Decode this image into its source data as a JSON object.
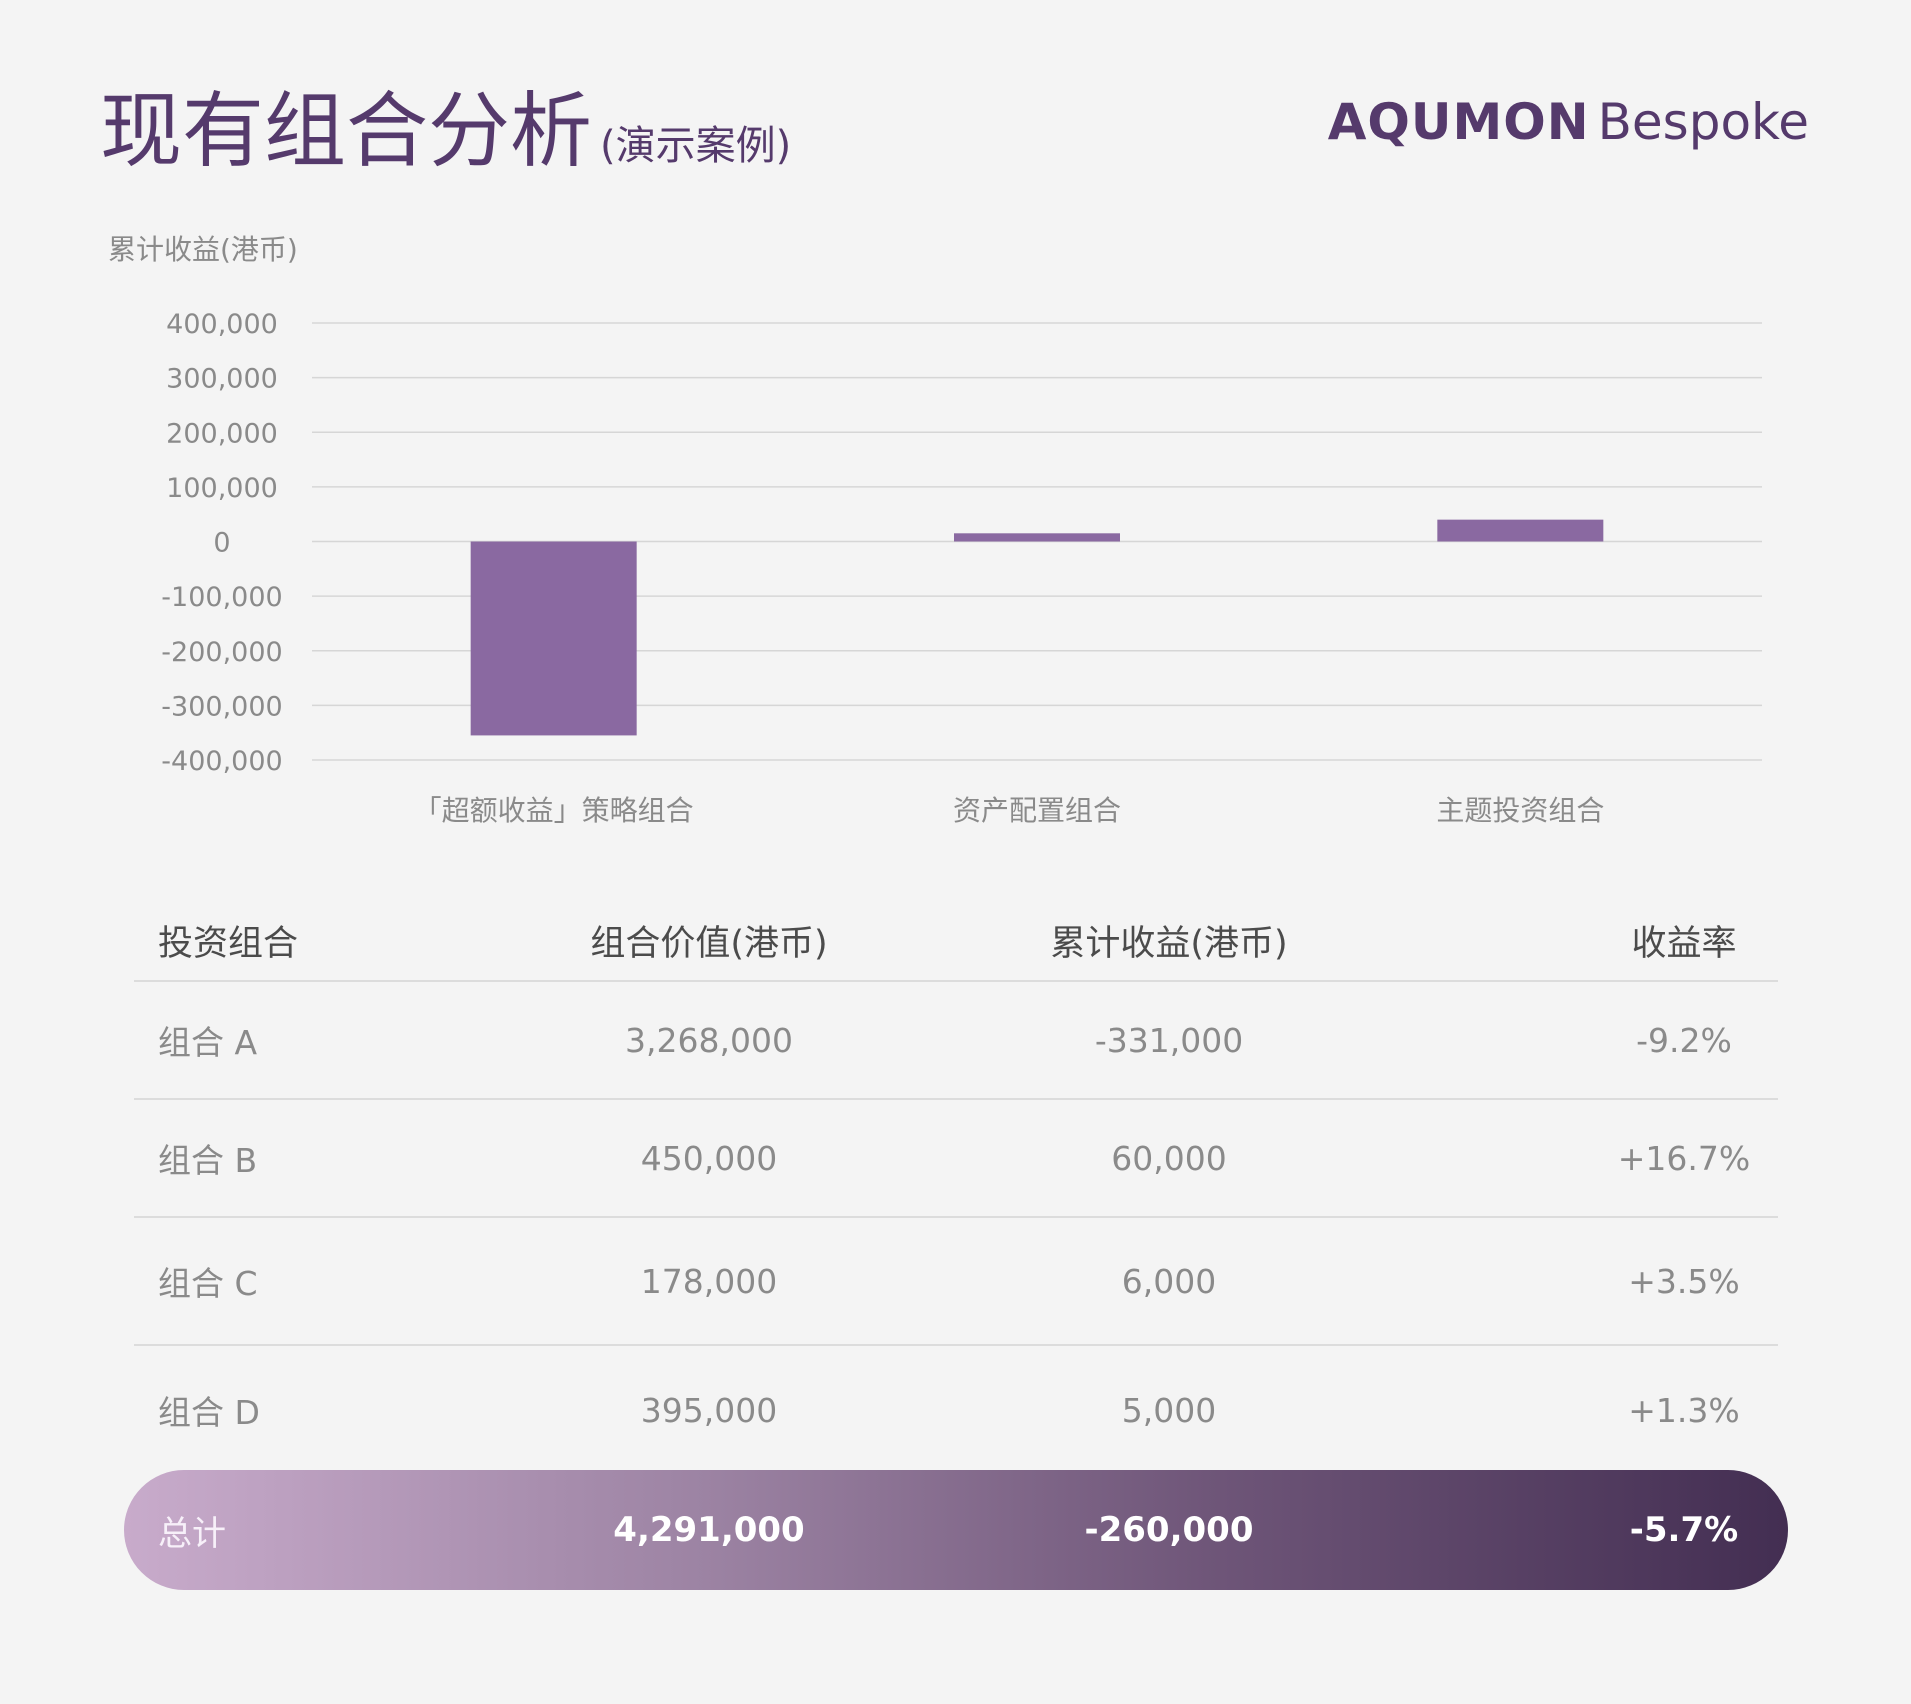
{
  "header": {
    "title": "现有组合分析",
    "subtitle": "(演示案例)",
    "brand_strong": "AQUMON",
    "brand_light": "Bespoke"
  },
  "colors": {
    "accent": "#553a6c",
    "bar": "#8a69a1",
    "grid": "#d6d6d6",
    "text_muted": "#8a8a8a"
  },
  "chart_data": {
    "type": "bar",
    "ylabel": "累计收益(港币)",
    "categories": [
      "「超额收益」策略组合",
      "资产配置组合",
      "主题投资组合"
    ],
    "values": [
      -355000,
      15000,
      40000
    ],
    "ylim": [
      -400000,
      400000
    ],
    "yticks": [
      400000,
      300000,
      200000,
      100000,
      0,
      -100000,
      -200000,
      -300000,
      -400000
    ],
    "ytick_labels": [
      "400,000",
      "300,000",
      "200,000",
      "100,000",
      "0",
      "-100,000",
      "-200,000",
      "-300,000",
      "-400,000"
    ],
    "grid": true
  },
  "table": {
    "headers": [
      "投资组合",
      "组合价值(港币)",
      "累计收益(港币)",
      "收益率"
    ],
    "rows": [
      [
        "组合 A",
        "3,268,000",
        "-331,000",
        "-9.2%"
      ],
      [
        "组合 B",
        "450,000",
        "60,000",
        "+16.7%"
      ],
      [
        "组合 C",
        "178,000",
        "6,000",
        "+3.5%"
      ],
      [
        "组合 D",
        "395,000",
        "5,000",
        "+1.3%"
      ]
    ],
    "total": [
      "总计",
      "4,291,000",
      "-260,000",
      "-5.7%"
    ]
  }
}
